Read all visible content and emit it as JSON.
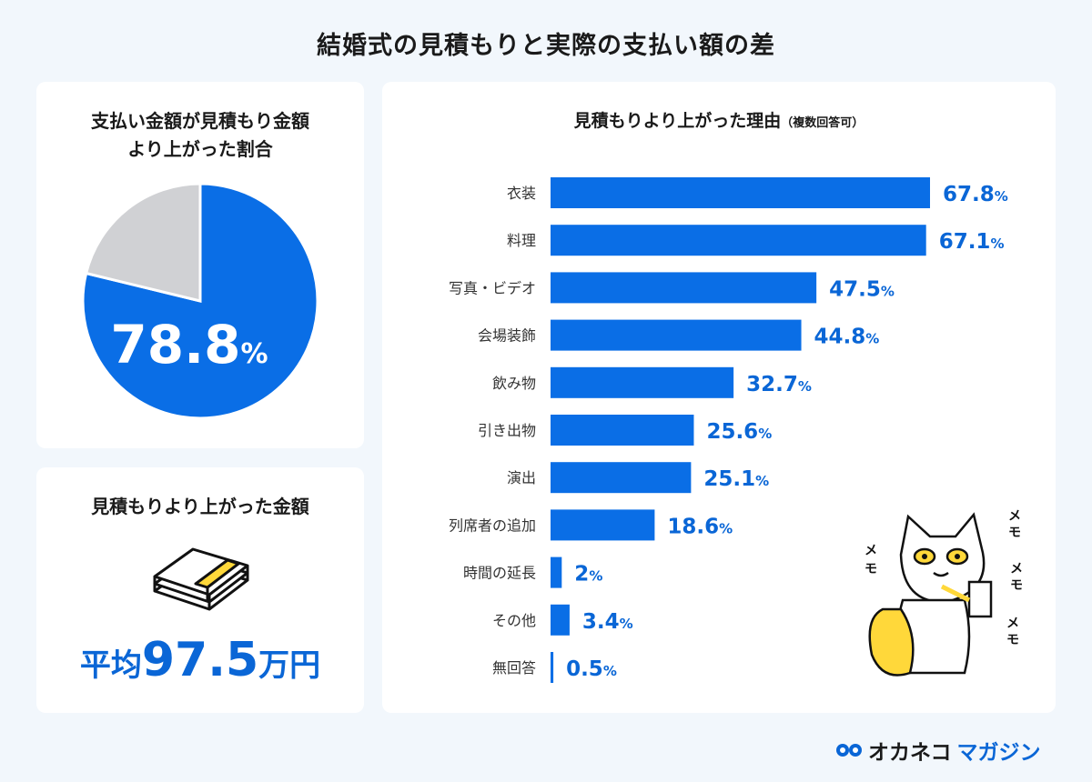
{
  "title": "結婚式の見積もりと実際の支払い額の差",
  "pie_card": {
    "title_line1": "支払い金額が見積もり金額",
    "title_line2": "より上がった割合"
  },
  "amount_card": {
    "title": "見積もりより上がった金額",
    "prefix": "平均",
    "value": "97.5",
    "suffix": "万円",
    "icon": "money-bundle-icon"
  },
  "bar_card": {
    "title": "見積もりより上がった理由",
    "title_note": "（複数回答可）"
  },
  "logo": {
    "part1": "オカネコ",
    "part2": "マガジン"
  },
  "colors": {
    "blue": "#0a6ee6",
    "gray": "#d0d1d4",
    "accent_yellow": "#ffd83a",
    "text_blue": "#0a66d6"
  },
  "chart_data": [
    {
      "type": "pie",
      "values": [
        78.8,
        21.2
      ],
      "label": "78.8",
      "unit": "%",
      "colors": [
        "#0a6ee6",
        "#d0d1d4"
      ]
    },
    {
      "type": "bar",
      "orientation": "horizontal",
      "unit": "%",
      "categories": [
        "衣装",
        "料理",
        "写真・ビデオ",
        "会場装飾",
        "飲み物",
        "引き出物",
        "演出",
        "列席者の追加",
        "時間の延長",
        "その他",
        "無回答"
      ],
      "values": [
        67.8,
        67.1,
        47.5,
        44.8,
        32.7,
        25.6,
        25.1,
        18.6,
        2,
        3.4,
        0.5
      ],
      "labels": [
        "67.8",
        "67.1",
        "47.5",
        "44.8",
        "32.7",
        "25.6",
        "25.1",
        "18.6",
        "2",
        "3.4",
        "0.5"
      ]
    }
  ]
}
